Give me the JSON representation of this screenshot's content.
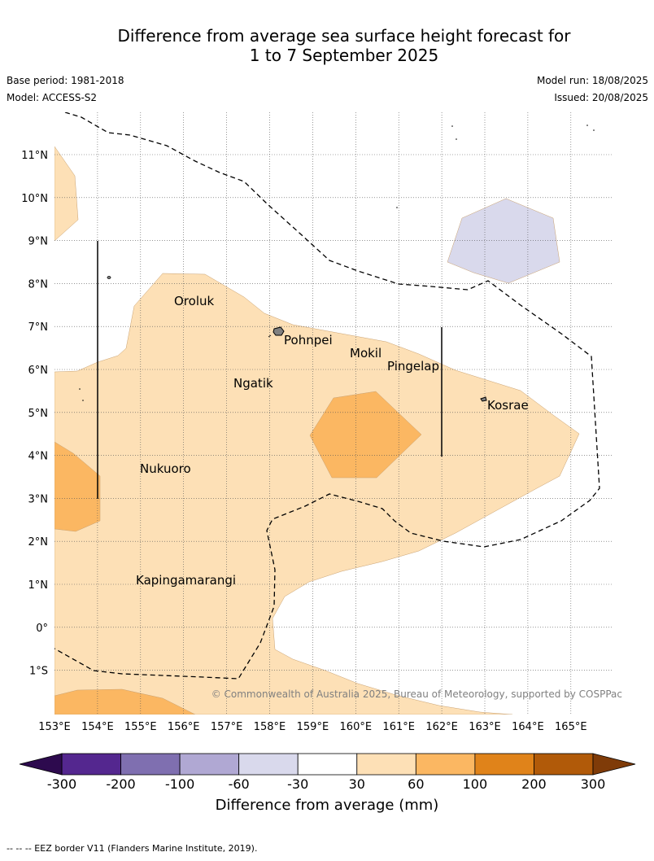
{
  "title_line1": "Difference from average sea surface height forecast for",
  "title_line2": "1 to 7 September 2025",
  "base_period": "Base period: 1981-2018",
  "model": "Model: ACCESS-S2",
  "model_run": "Model run: 18/08/2025",
  "issued": "Issued: 20/08/2025",
  "copyright": "© Commonwealth of Australia 2025, Bureau of Meteorology, supported by COSPPac",
  "lon_labels": [
    "153°E",
    "154°E",
    "155°E",
    "156°E",
    "157°E",
    "158°E",
    "159°E",
    "160°E",
    "161°E",
    "162°E",
    "163°E",
    "164°E",
    "165°E"
  ],
  "lat_labels": [
    "11°N",
    "10°N",
    "9°N",
    "8°N",
    "7°N",
    "6°N",
    "5°N",
    "4°N",
    "3°N",
    "2°N",
    "1°N",
    "0°",
    "1°S"
  ],
  "places": [
    {
      "name": "Oroluk"
    },
    {
      "name": "Pohnpei"
    },
    {
      "name": "Mokil"
    },
    {
      "name": "Pingelap"
    },
    {
      "name": "Ngatik"
    },
    {
      "name": "Kosrae"
    },
    {
      "name": "Nukuoro"
    },
    {
      "name": "Kapingamarangi"
    }
  ],
  "colorbar": {
    "ticks": [
      "-300",
      "-200",
      "-100",
      "-60",
      "-30",
      "30",
      "60",
      "100",
      "200",
      "300"
    ],
    "colors": {
      "below_min": "#2d0a4e",
      "bins": [
        "#54278f",
        "#7f6fb0",
        "#b0a8d3",
        "#d9d9ec",
        "#ffffff",
        "#fde0b6",
        "#fbb762",
        "#e0831a",
        "#b15a09"
      ],
      "above_max": "#7f3b08"
    },
    "title": "Difference from average (mm)"
  },
  "legend_note": "-- --  -- EEZ border V11 (Flanders Marine Institute, 2019).",
  "fill_colors": {
    "light_orange": "#fde0b6",
    "orange": "#fbb762",
    "light_purple": "#d9d9ec"
  }
}
